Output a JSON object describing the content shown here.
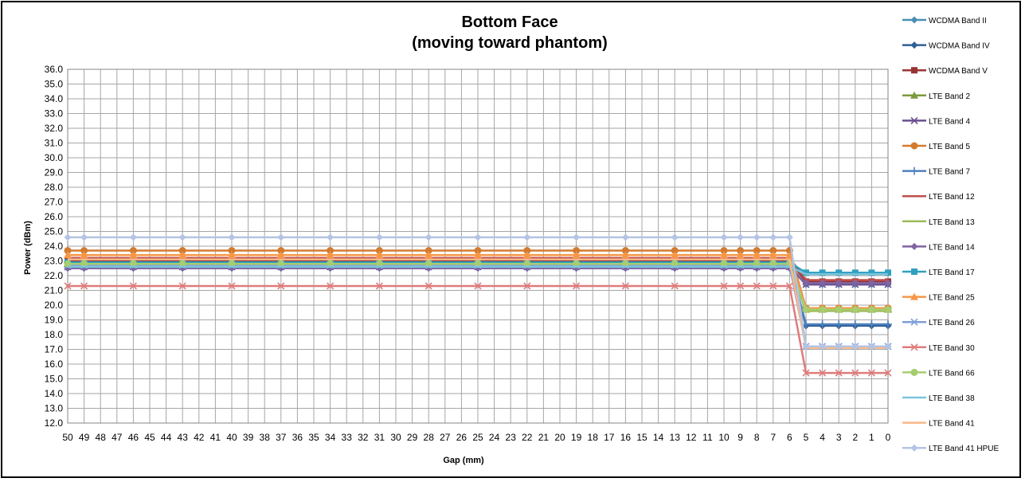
{
  "chart_data": {
    "type": "line",
    "title": "Bottom Face",
    "subtitle": "(moving toward phantom)",
    "xlabel": "Gap (mm)",
    "ylabel": "Power (dBm)",
    "ylim": [
      12,
      36
    ],
    "ystep": 1,
    "grid": true,
    "legend_position": "right",
    "categories": [
      "50",
      "49",
      "48",
      "47",
      "46",
      "45",
      "44",
      "43",
      "42",
      "41",
      "40",
      "39",
      "38",
      "37",
      "36",
      "35",
      "34",
      "33",
      "32",
      "31",
      "30",
      "29",
      "28",
      "27",
      "26",
      "25",
      "24",
      "23",
      "22",
      "21",
      "20",
      "19",
      "18",
      "17",
      "16",
      "15",
      "14",
      "13",
      "12",
      "11",
      "10",
      "9",
      "8",
      "7",
      "6",
      "5",
      "4",
      "3",
      "2",
      "1",
      "0"
    ],
    "marker_categories": [
      "50",
      "49",
      "46",
      "43",
      "40",
      "37",
      "34",
      "31",
      "28",
      "25",
      "22",
      "19",
      "16",
      "13",
      "10",
      "9",
      "8",
      "7",
      "6",
      "5",
      "4",
      "3",
      "2",
      "1",
      "0"
    ],
    "series": [
      {
        "name": "WCDMA Band II",
        "color": "#4a8fb5",
        "marker": "diamond",
        "high": 22.7,
        "low": 21.4
      },
      {
        "name": "WCDMA Band IV",
        "color": "#2f5f95",
        "marker": "diamond",
        "high": 22.6,
        "low": 18.6
      },
      {
        "name": "WCDMA Band V",
        "color": "#963432",
        "marker": "square",
        "high": 23.0,
        "low": 21.6
      },
      {
        "name": "LTE Band 2",
        "color": "#7b9a3c",
        "marker": "triangle",
        "high": 22.8,
        "low": 19.7
      },
      {
        "name": "LTE Band 4",
        "color": "#6a4f91",
        "marker": "x",
        "high": 22.6,
        "low": 21.4
      },
      {
        "name": "LTE Band 5",
        "color": "#d27b30",
        "marker": "circle",
        "high": 23.7,
        "low": 19.8
      },
      {
        "name": "LTE Band 7",
        "color": "#4f81bd",
        "marker": "plus",
        "high": 22.9,
        "low": 18.7
      },
      {
        "name": "LTE Band 12",
        "color": "#c0504d",
        "marker": "none",
        "high": 23.2,
        "low": 21.7
      },
      {
        "name": "LTE Band 13",
        "color": "#9bbb59",
        "marker": "none",
        "high": 22.7,
        "low": 19.6
      },
      {
        "name": "LTE Band 14",
        "color": "#8064a2",
        "marker": "diamond",
        "high": 22.5,
        "low": 21.5
      },
      {
        "name": "LTE Band 17",
        "color": "#31a0bf",
        "marker": "square",
        "high": 22.9,
        "low": 22.2
      },
      {
        "name": "LTE Band 25",
        "color": "#f79646",
        "marker": "triangle",
        "high": 23.4,
        "low": 19.8
      },
      {
        "name": "LTE Band 26",
        "color": "#7f9fd8",
        "marker": "x",
        "high": 22.7,
        "low": 17.2
      },
      {
        "name": "LTE Band 30",
        "color": "#e07b7b",
        "marker": "x",
        "high": 21.3,
        "low": 15.4
      },
      {
        "name": "LTE Band 66",
        "color": "#a6cd6f",
        "marker": "circle",
        "high": 22.8,
        "low": 19.7
      },
      {
        "name": "LTE Band 38",
        "color": "#7cc4dc",
        "marker": "none",
        "high": 22.6,
        "low": 22.1
      },
      {
        "name": "LTE Band 41",
        "color": "#f9b98a",
        "marker": "none",
        "high": 23.1,
        "low": 17.1
      },
      {
        "name": "LTE Band 41 HPUE",
        "color": "#b3c4e4",
        "marker": "diamond",
        "high": 24.6,
        "low": 17.2
      }
    ]
  }
}
